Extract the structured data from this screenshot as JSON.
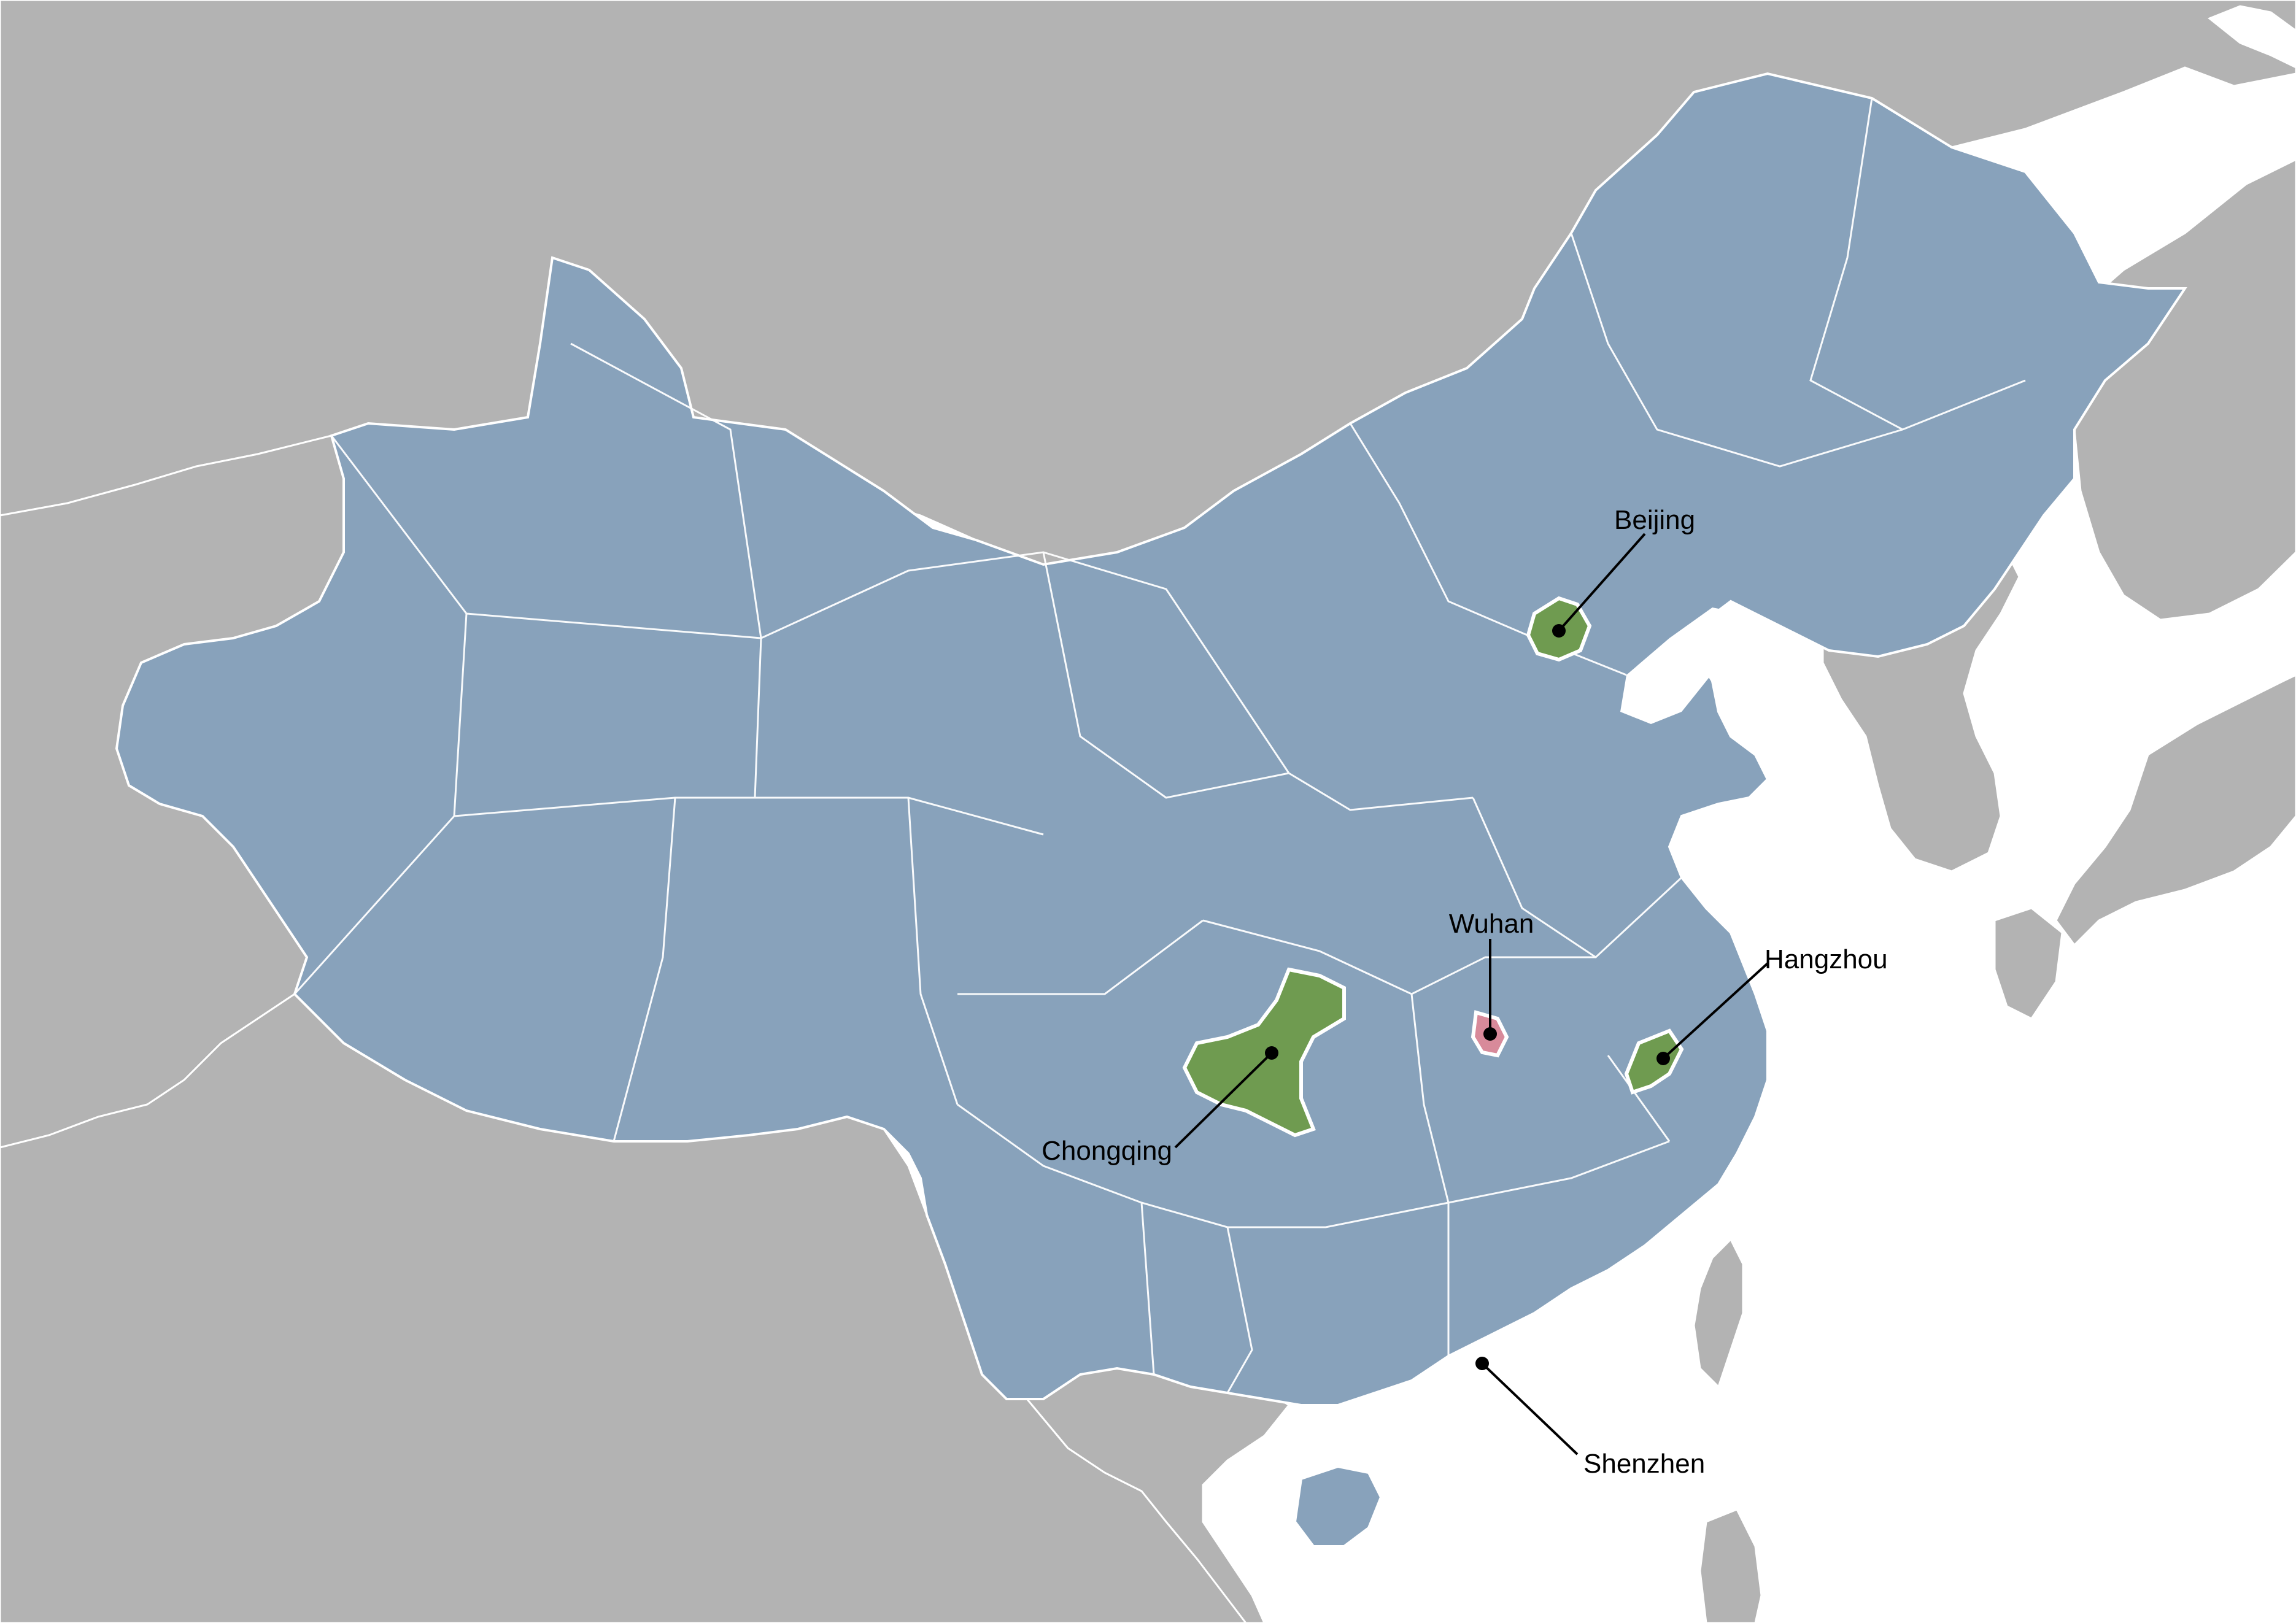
{
  "map": {
    "colors": {
      "ocean": "#ffffff",
      "neighbor_land": "#b3b3b3",
      "china_prefectures": "#88a2bb",
      "borders": "#ffffff",
      "highlight_green": "#6f9b50",
      "highlight_pink": "#d88a9a",
      "rivers_lakes": "#a8c3dc",
      "label_text": "#000000"
    },
    "cities": [
      {
        "name": "Beijing",
        "highlight": "green"
      },
      {
        "name": "Wuhan",
        "highlight": "pink"
      },
      {
        "name": "Hangzhou",
        "highlight": "green"
      },
      {
        "name": "Chongqing",
        "highlight": "green"
      },
      {
        "name": "Shenzhen",
        "highlight": "none"
      }
    ]
  }
}
